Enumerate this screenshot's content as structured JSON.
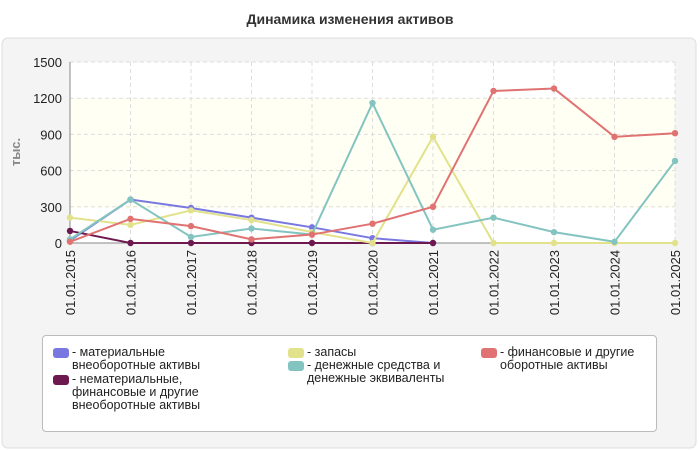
{
  "chart_data": {
    "type": "line",
    "title": "Динамика изменения активов",
    "y_label": "тыс.",
    "categories": [
      "01.01.2015",
      "01.01.2016",
      "01.01.2017",
      "01.01.2018",
      "01.01.2019",
      "01.01.2020",
      "01.01.2021",
      "01.01.2022",
      "01.01.2023",
      "01.01.2024",
      "01.01.2025"
    ],
    "ylim": [
      0,
      1500
    ],
    "yticks": [
      0,
      300,
      600,
      900,
      1200,
      1500
    ],
    "grid": true,
    "series": [
      {
        "name": "- материальные внеоборотные активы",
        "color": "#7878e0",
        "values": [
          20,
          360,
          290,
          210,
          130,
          40,
          0,
          null,
          null,
          null,
          null
        ]
      },
      {
        "name": "- нематериальные, финансовые и другие внеоборотные активы",
        "color": "#6e1850",
        "values": [
          100,
          0,
          0,
          0,
          0,
          0,
          0,
          null,
          null,
          null,
          null
        ]
      },
      {
        "name": "- запасы",
        "color": "#e2e28c",
        "values": [
          210,
          150,
          270,
          190,
          90,
          0,
          880,
          0,
          0,
          0,
          0
        ]
      },
      {
        "name": "- денежные средства и денежные эквиваленты",
        "color": "#84c4c0",
        "values": [
          30,
          360,
          50,
          120,
          70,
          1160,
          110,
          210,
          90,
          10,
          680
        ]
      },
      {
        "name": "- финансовые и другие оборотные активы",
        "color": "#e07272",
        "values": [
          10,
          200,
          140,
          30,
          70,
          160,
          300,
          1260,
          1280,
          880,
          910
        ]
      }
    ]
  }
}
